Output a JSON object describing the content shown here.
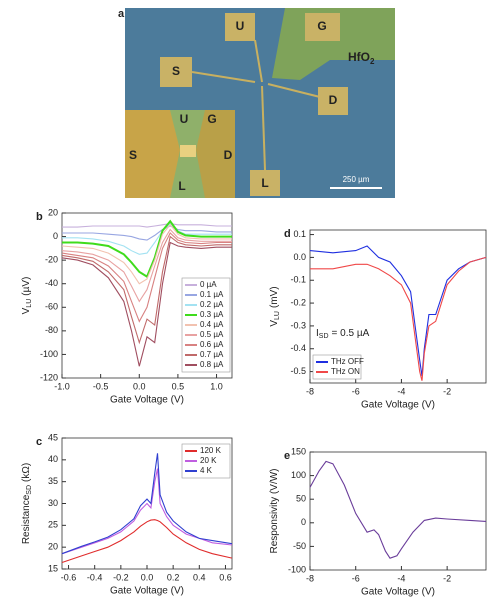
{
  "image": {
    "panel": "a",
    "pads": [
      "U",
      "G",
      "S",
      "D",
      "L"
    ],
    "inset": [
      "U",
      "G",
      "S",
      "D",
      "L"
    ],
    "oxide": {
      "text": "HfO",
      "sub": "2"
    },
    "scale_bar": "250 µm"
  },
  "chart_data": [
    {
      "type": "line",
      "panel": "b",
      "xlabel": "Gate Voltage (V)",
      "ylabel": {
        "text": "V",
        "sub": "LU",
        "unit": "(µV)"
      },
      "x": [
        -1.0,
        -0.8,
        -0.6,
        -0.4,
        -0.2,
        -0.1,
        0,
        0.1,
        0.2,
        0.3,
        0.4,
        0.5,
        0.6,
        0.8,
        1.0,
        1.2
      ],
      "xlim": [
        -1.0,
        1.2
      ],
      "ylim": [
        -120,
        20
      ],
      "xticks": [
        {
          "value": -1,
          "label": "-1.0"
        },
        -0.5,
        {
          "value": 0,
          "label": "0.0"
        },
        0.5,
        {
          "value": 1,
          "label": "1.0"
        }
      ],
      "yticks": [
        20,
        0,
        -20,
        -40,
        -60,
        -80,
        -100,
        -120
      ],
      "legend": "right",
      "series": [
        {
          "name": "0 µA",
          "color": "#c7b0dc",
          "values": [
            8,
            8,
            9,
            9,
            9,
            9,
            9,
            8,
            9,
            10,
            11,
            10,
            10,
            10,
            9,
            9
          ]
        },
        {
          "name": "0.1 µA",
          "color": "#98a6e2",
          "values": [
            3,
            3,
            3,
            2,
            1,
            0,
            -2,
            -3,
            1,
            6,
            9,
            6,
            5,
            5,
            4,
            4
          ]
        },
        {
          "name": "0.2 µA",
          "color": "#a3e2f2",
          "values": [
            -1,
            -1,
            -2,
            -4,
            -8,
            -12,
            -15,
            -14,
            -5,
            5,
            11,
            5,
            2,
            2,
            2,
            2
          ]
        },
        {
          "name": "0.3 µA",
          "color": "#3fdc1c",
          "values": [
            -5,
            -5,
            -6,
            -8,
            -15,
            -22,
            -30,
            -34,
            -18,
            5,
            13,
            4,
            1,
            0,
            0,
            0
          ]
        },
        {
          "name": "0.4 µA",
          "color": "#f2c2b0",
          "values": [
            -8,
            -9,
            -10,
            -14,
            -22,
            -30,
            -40,
            -36,
            -20,
            2,
            10,
            2,
            -1,
            -2,
            -2,
            -2
          ]
        },
        {
          "name": "0.5 µA",
          "color": "#e8a2a2",
          "values": [
            -12,
            -13,
            -15,
            -20,
            -30,
            -42,
            -55,
            -45,
            -25,
            -5,
            6,
            -1,
            -3,
            -4,
            -4,
            -4
          ]
        },
        {
          "name": "0.6 µA",
          "color": "#d88282",
          "values": [
            -14,
            -16,
            -18,
            -25,
            -38,
            -55,
            -72,
            -60,
            -35,
            -10,
            3,
            -3,
            -5,
            -6,
            -5,
            -5
          ]
        },
        {
          "name": "0.7 µA",
          "color": "#c06a6a",
          "values": [
            -16,
            -18,
            -21,
            -30,
            -45,
            -68,
            -90,
            -70,
            -75,
            -30,
            0,
            -5,
            -7,
            -8,
            -7,
            -7
          ]
        },
        {
          "name": "0.8 µA",
          "color": "#a04e60",
          "values": [
            -18,
            -20,
            -24,
            -35,
            -55,
            -80,
            -110,
            -85,
            -90,
            -40,
            -5,
            -8,
            -9,
            -10,
            -9,
            -9
          ]
        }
      ]
    },
    {
      "type": "line",
      "panel": "c",
      "xlabel": "Gate Voltage (V)",
      "ylabel": {
        "text": "Resistance",
        "sub": "SD",
        "unit": "(kΩ)"
      },
      "x": [
        -0.65,
        -0.5,
        -0.4,
        -0.3,
        -0.2,
        -0.1,
        -0.05,
        0,
        0.03,
        0.06,
        0.08,
        0.1,
        0.15,
        0.2,
        0.3,
        0.4,
        0.5,
        0.65
      ],
      "xlim": [
        -0.65,
        0.65
      ],
      "ylim": [
        15,
        45
      ],
      "xticks": [
        -0.6,
        -0.4,
        -0.2,
        {
          "value": 0,
          "label": "0.0"
        },
        0.2,
        0.4,
        0.6
      ],
      "yticks": [
        15,
        20,
        25,
        30,
        35,
        40,
        45
      ],
      "legend": "upper right",
      "series": [
        {
          "name": "120 K",
          "color": "#e02c2c",
          "values": [
            16.5,
            18,
            19,
            20,
            21.5,
            23.5,
            24.8,
            25.8,
            26.2,
            26.3,
            26.1,
            25.8,
            24.5,
            23,
            21,
            19.5,
            18.5,
            17.5
          ]
        },
        {
          "name": "20 K",
          "color": "#c05ee0",
          "values": [
            18.5,
            20,
            21,
            22,
            23.5,
            26,
            28.5,
            30,
            29,
            35,
            38,
            30,
            27,
            25,
            23,
            22,
            21,
            20.5
          ]
        },
        {
          "name": "4 K",
          "color": "#3040d0",
          "values": [
            18.5,
            20.2,
            21.2,
            22.3,
            24,
            26.5,
            29.5,
            31,
            30,
            37,
            41.5,
            32,
            28,
            26,
            23.5,
            22,
            21.5,
            20.8
          ]
        }
      ]
    },
    {
      "type": "line",
      "panel": "d",
      "xlabel": "Gate Voltage (V)",
      "ylabel": {
        "text": "V",
        "sub": "LU",
        "unit": "(mV)"
      },
      "annotation": {
        "text": "I",
        "sub": "SD",
        "rest": "= 0.5 µA"
      },
      "x": [
        -8,
        -7,
        -6,
        -5.5,
        -5,
        -4.5,
        -4,
        -3.6,
        -3.4,
        -3.2,
        -3.1,
        -3.0,
        -2.8,
        -2.5,
        -2,
        -1.5,
        -1,
        -0.3
      ],
      "xlim": [
        -8,
        -0.3
      ],
      "ylim": [
        -0.55,
        0.12
      ],
      "xticks": [
        -8,
        -6,
        -4,
        -2
      ],
      "yticks": [
        0.1,
        {
          "value": 0,
          "label": "0.0"
        },
        -0.1,
        -0.2,
        -0.3,
        -0.4,
        -0.5
      ],
      "legend": "lower left",
      "series": [
        {
          "name": "THz OFF",
          "color": "#1f2fe0",
          "values": [
            0.03,
            0.02,
            0.03,
            0.05,
            0.0,
            -0.02,
            -0.08,
            -0.15,
            -0.3,
            -0.45,
            -0.52,
            -0.4,
            -0.25,
            -0.25,
            -0.1,
            -0.05,
            -0.02,
            0.0
          ]
        },
        {
          "name": "THz ON",
          "color": "#f04848",
          "values": [
            -0.05,
            -0.05,
            -0.03,
            -0.03,
            -0.05,
            -0.08,
            -0.12,
            -0.2,
            -0.35,
            -0.5,
            -0.54,
            -0.42,
            -0.3,
            -0.28,
            -0.12,
            -0.06,
            -0.02,
            0.0
          ]
        }
      ]
    },
    {
      "type": "line",
      "panel": "e",
      "xlabel": "Gate Voltage (V)",
      "ylabel": {
        "text": "Responsivity (V/W)"
      },
      "x": [
        -8,
        -7.6,
        -7.3,
        -7,
        -6.5,
        -6,
        -5.5,
        -5.2,
        -5,
        -4.7,
        -4.5,
        -4.2,
        -4,
        -3.5,
        -3,
        -2.5,
        -2,
        -1,
        -0.3
      ],
      "xlim": [
        -8,
        -0.3
      ],
      "ylim": [
        -100,
        150
      ],
      "xticks": [
        -8,
        -6,
        -4,
        -2
      ],
      "yticks": [
        -100,
        -50,
        0,
        50,
        100,
        150
      ],
      "series": [
        {
          "color": "#6a3d9a",
          "values": [
            75,
            110,
            130,
            125,
            80,
            20,
            -20,
            -15,
            -25,
            -60,
            -75,
            -70,
            -55,
            -20,
            5,
            10,
            8,
            5,
            3
          ]
        }
      ]
    }
  ]
}
